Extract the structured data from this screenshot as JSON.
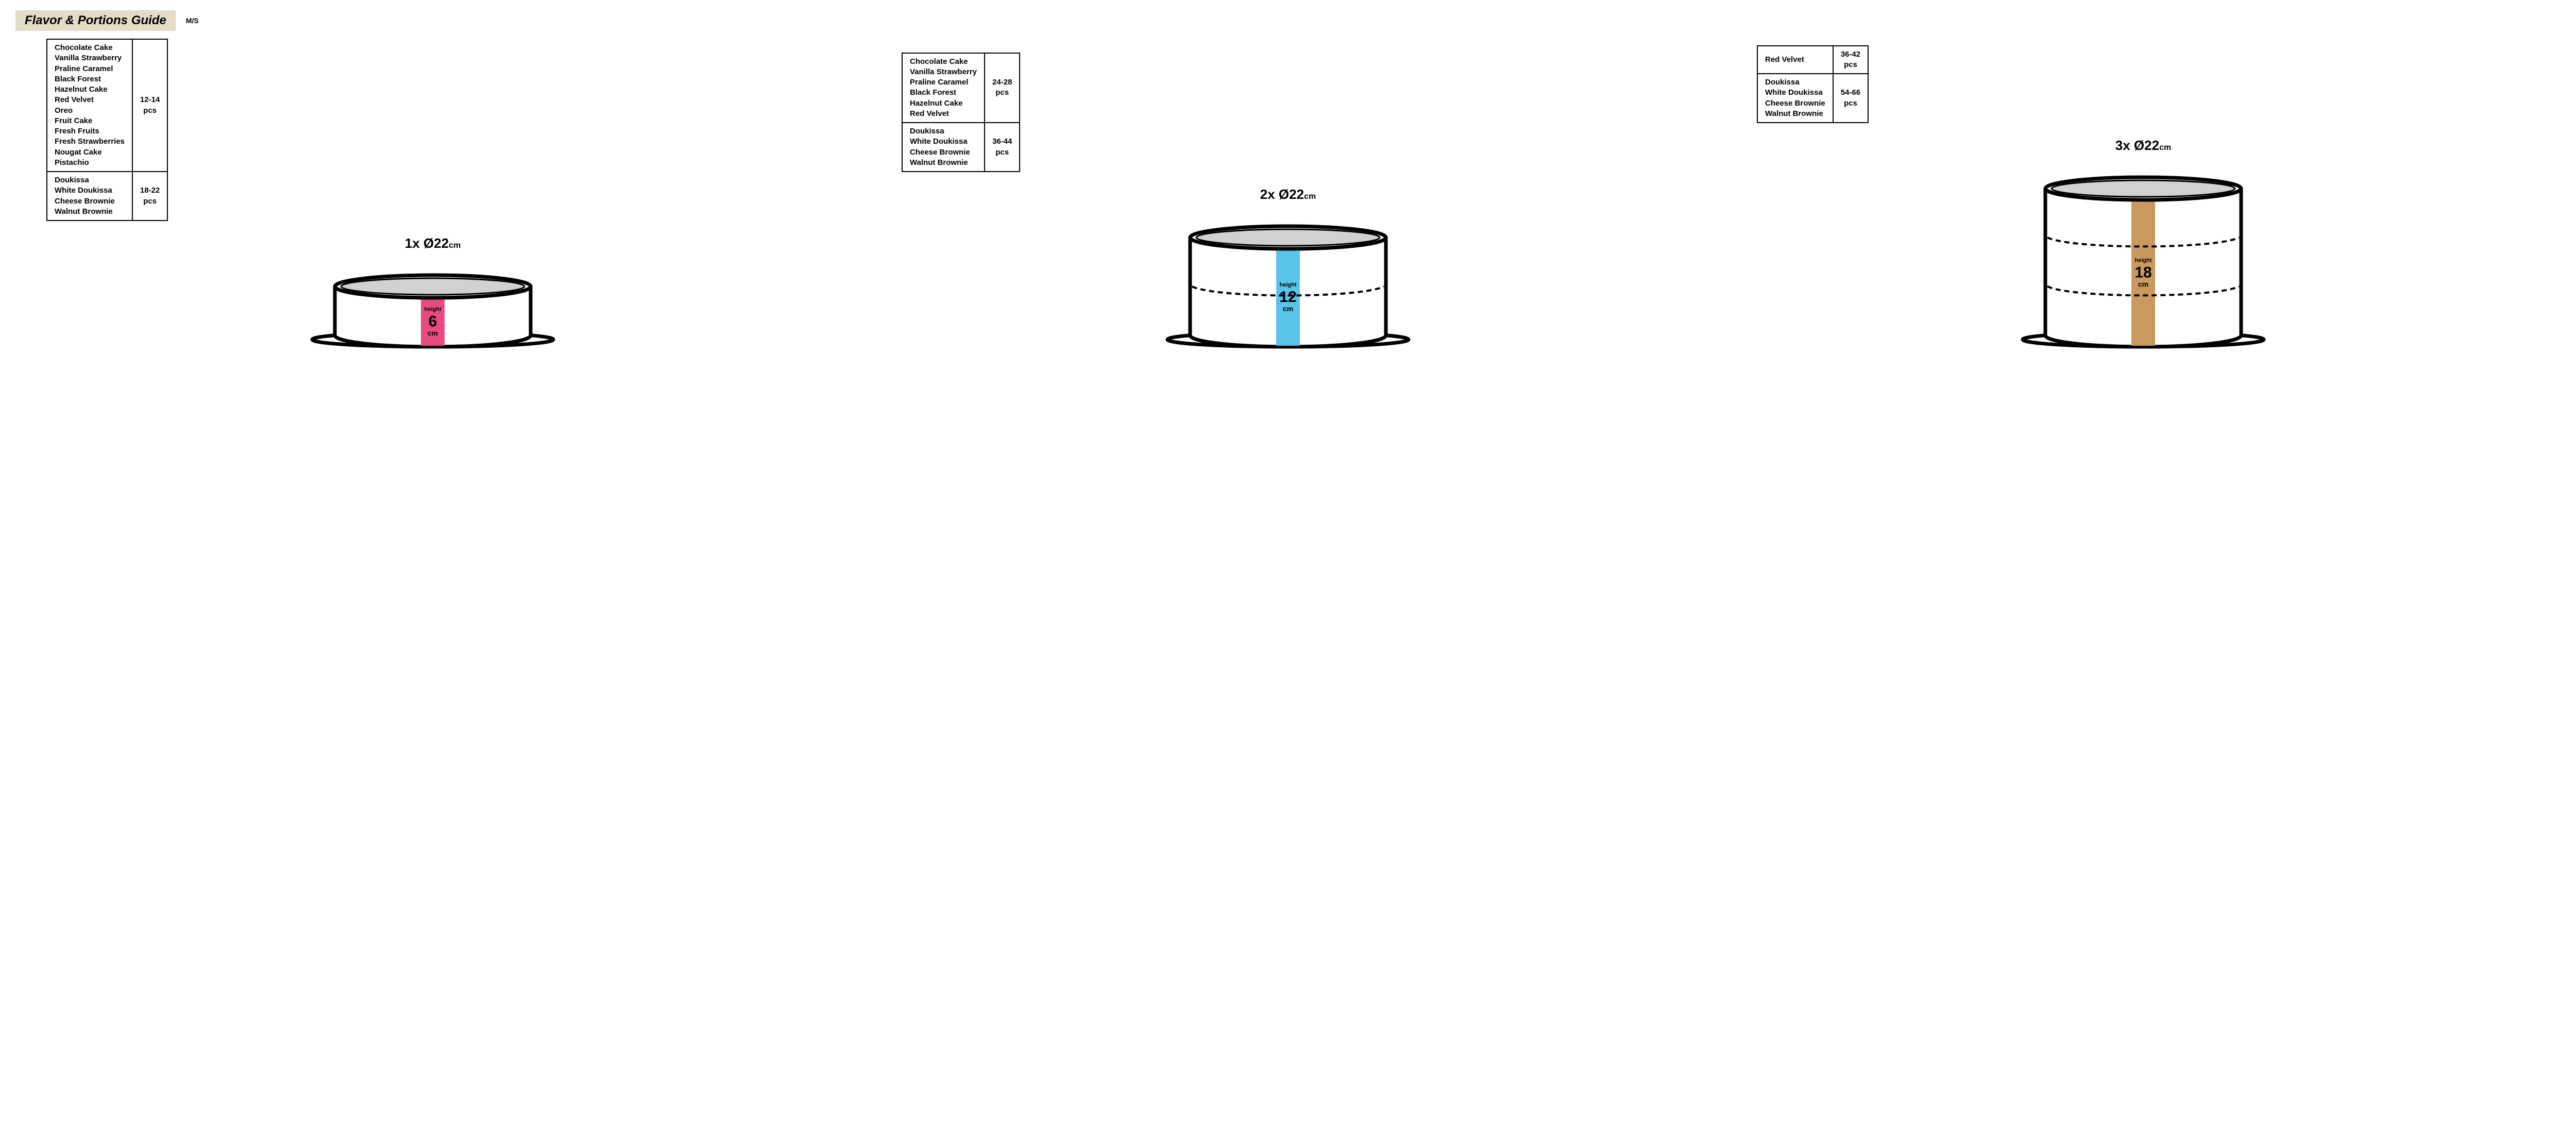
{
  "header": {
    "title": "Flavor & Portions Guide",
    "subtitle": "M/S",
    "title_bg": "#e5dcc5"
  },
  "colors": {
    "stroke": "#000000",
    "top_fill": "#d1d1d1",
    "stripe1": "#e84b7d",
    "stripe2": "#58c4ea",
    "stripe3": "#c9995d"
  },
  "cakes": [
    {
      "size_label_prefix": "1x  Ø22",
      "size_label_unit": "cm",
      "height_label": "height",
      "height_value": "6",
      "height_unit": "cm",
      "stripe_color": "#e84b7d",
      "body_height": 95,
      "dash_lines": [],
      "tables": [
        {
          "flavors": [
            "Chocolate Cake",
            "Vanilla Strawberry",
            "Praline Caramel",
            "Black Forest",
            "Hazelnut Cake",
            "Red Velvet",
            "Oreo",
            "Fruit Cake",
            "Fresh Fruits",
            "Fresh Strawberries",
            "Nougat Cake",
            "Pistachio"
          ],
          "pcs": "12-14\npcs"
        },
        {
          "flavors": [
            "Doukissa",
            "White Doukissa",
            "Cheese Brownie",
            "Walnut Brownie"
          ],
          "pcs": "18-22\npcs"
        }
      ]
    },
    {
      "size_label_prefix": "2x  Ø22",
      "size_label_unit": "cm",
      "height_label": "height",
      "height_value": "12",
      "height_unit": "cm",
      "stripe_color": "#58c4ea",
      "body_height": 190,
      "dash_lines": [
        0.5
      ],
      "tables": [
        {
          "flavors": [
            "Chocolate Cake",
            "Vanilla Strawberry",
            "Praline Caramel",
            "Black Forest",
            "Hazelnut Cake",
            "Red Velvet"
          ],
          "pcs": "24-28\npcs"
        },
        {
          "flavors": [
            "Doukissa",
            "White Doukissa",
            "Cheese Brownie",
            "Walnut Brownie"
          ],
          "pcs": "36-44\npcs"
        }
      ]
    },
    {
      "size_label_prefix": "3x  Ø22",
      "size_label_unit": "cm",
      "height_label": "height",
      "height_value": "18",
      "height_unit": "cm",
      "stripe_color": "#c9995d",
      "body_height": 285,
      "dash_lines": [
        0.333,
        0.666
      ],
      "tables": [
        {
          "flavors": [
            "Red Velvet"
          ],
          "pcs": "36-42\npcs"
        },
        {
          "flavors": [
            "Doukissa",
            "White Doukissa",
            "Cheese Brownie",
            "Walnut Brownie"
          ],
          "pcs": "54-66\npcs"
        }
      ]
    }
  ]
}
